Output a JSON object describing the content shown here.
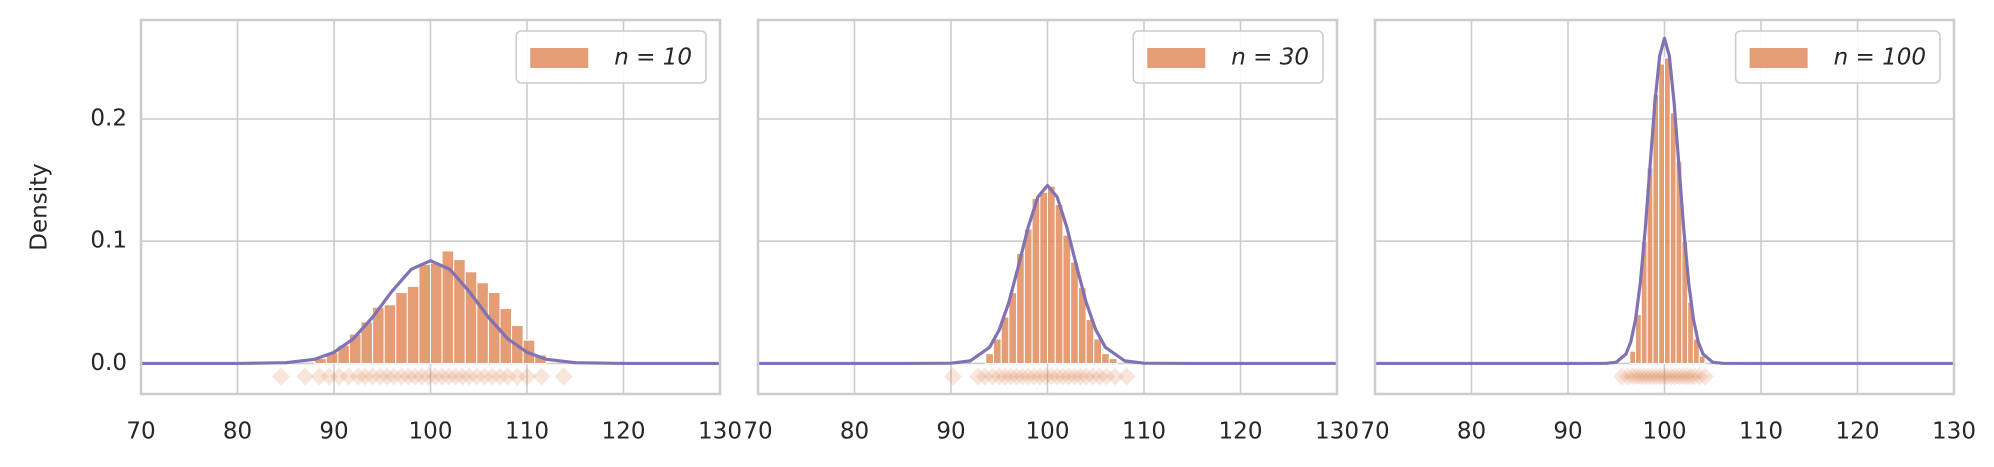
{
  "chart_data": [
    {
      "type": "histogram",
      "ylabel": "Density",
      "label": "n = 10",
      "color": "#dd8452",
      "legend": "upper right",
      "grid": true,
      "xlim": [
        70,
        130
      ],
      "xticks": [
        70,
        80,
        90,
        100,
        110,
        120,
        130
      ],
      "ylim": [
        -0.025,
        0.281
      ],
      "yticks": [
        {
          "value": 0,
          "label": "0.0"
        },
        0.1,
        0.2
      ],
      "ytick_labels": true,
      "bins": [
        88,
        89.2,
        90.4,
        91.6,
        92.8,
        94,
        95.2,
        96.4,
        97.6,
        98.8,
        100,
        101.2,
        102.4,
        103.6,
        104.8,
        106,
        107.2,
        108.4,
        109.6,
        110.8,
        112
      ],
      "values": [
        0.004,
        0.009,
        0.015,
        0.024,
        0.034,
        0.046,
        0.048,
        0.058,
        0.063,
        0.081,
        0.082,
        0.092,
        0.085,
        0.075,
        0.066,
        0.058,
        0.045,
        0.031,
        0.019,
        0.007
      ],
      "curve": {
        "color": "#8172b3",
        "x": [
          70,
          80,
          85,
          88,
          90,
          92,
          94,
          96,
          98,
          100,
          102,
          104,
          106,
          108,
          110,
          112,
          115,
          120,
          130
        ],
        "values": [
          0,
          0,
          0.0006,
          0.0034,
          0.0091,
          0.0202,
          0.0378,
          0.059,
          0.077,
          0.0841,
          0.077,
          0.059,
          0.0378,
          0.0202,
          0.0091,
          0.0034,
          0.0006,
          0,
          0
        ]
      },
      "rug": {
        "color": "#dd8452",
        "x": [
          84.5,
          87,
          88.5,
          89.5,
          90.5,
          91.5,
          92.5,
          93.2,
          94,
          94.8,
          95.5,
          96.2,
          97,
          97.7,
          98.4,
          99.1,
          99.8,
          100.5,
          101.2,
          101.9,
          102.6,
          103.3,
          104,
          104.8,
          105.6,
          106.4,
          107.2,
          108,
          109,
          110,
          111.5,
          113.8
        ]
      }
    },
    {
      "type": "histogram",
      "label": "n = 30",
      "color": "#dd8452",
      "legend": "upper right",
      "grid": true,
      "xlim": [
        70,
        130
      ],
      "xticks": [
        70,
        80,
        90,
        100,
        110,
        120,
        130
      ],
      "ylim": [
        -0.025,
        0.281
      ],
      "yticks": [
        0,
        0.1,
        0.2
      ],
      "ytick_labels": false,
      "bins": [
        93.6,
        94.4,
        95.2,
        96,
        96.8,
        97.6,
        98.4,
        99.2,
        100,
        100.8,
        101.6,
        102.4,
        103.2,
        104,
        104.8,
        105.6,
        106.4,
        107.2
      ],
      "values": [
        0.008,
        0.02,
        0.038,
        0.058,
        0.09,
        0.11,
        0.135,
        0.14,
        0.145,
        0.13,
        0.105,
        0.083,
        0.062,
        0.036,
        0.02,
        0.008,
        0.004
      ],
      "curve": {
        "color": "#8172b3",
        "x": [
          70,
          85,
          90,
          92,
          94,
          95,
          96,
          97,
          98,
          99,
          100,
          101,
          102,
          103,
          104,
          105,
          106,
          108,
          110,
          115,
          130
        ],
        "values": [
          0,
          0,
          0.0002,
          0.0021,
          0.0132,
          0.0275,
          0.0501,
          0.08,
          0.1115,
          0.1362,
          0.1456,
          0.1362,
          0.1115,
          0.08,
          0.0501,
          0.0275,
          0.0132,
          0.0021,
          0.0002,
          0,
          0
        ]
      },
      "rug": {
        "color": "#dd8452",
        "x": [
          90.2,
          92.8,
          93.5,
          94.3,
          95,
          95.6,
          96.2,
          96.8,
          97.4,
          98,
          98.6,
          99.2,
          99.8,
          100.4,
          101,
          101.6,
          102.2,
          102.8,
          103.4,
          104,
          104.7,
          105.4,
          106.1,
          107,
          108.2
        ]
      }
    },
    {
      "type": "histogram",
      "label": "n = 100",
      "color": "#dd8452",
      "legend": "upper right",
      "grid": true,
      "xlim": [
        70,
        130
      ],
      "xticks": [
        70,
        80,
        90,
        100,
        110,
        120,
        130
      ],
      "ylim": [
        -0.025,
        0.281
      ],
      "yticks": [
        0,
        0.1,
        0.2
      ],
      "ytick_labels": false,
      "bins": [
        96.4,
        97,
        97.6,
        98.2,
        98.8,
        99.4,
        100,
        100.6,
        101.2,
        101.8,
        102.4,
        103,
        103.6,
        104.2
      ],
      "values": [
        0.01,
        0.04,
        0.1,
        0.16,
        0.22,
        0.245,
        0.25,
        0.205,
        0.165,
        0.1,
        0.05,
        0.02,
        0.006
      ],
      "curve": {
        "color": "#8172b3",
        "x": [
          70,
          90,
          94,
          95,
          96,
          96.5,
          97,
          97.5,
          98,
          98.5,
          99,
          99.5,
          100,
          100.5,
          101,
          101.5,
          102,
          102.5,
          103,
          103.5,
          104,
          105,
          106,
          110,
          130
        ],
        "values": [
          0,
          0,
          0.0001,
          0.001,
          0.0076,
          0.0175,
          0.036,
          0.0663,
          0.1094,
          0.1613,
          0.213,
          0.2516,
          0.266,
          0.2516,
          0.213,
          0.1613,
          0.1094,
          0.0663,
          0.036,
          0.0175,
          0.0076,
          0.001,
          0.0001,
          0,
          0
        ]
      },
      "rug": {
        "color": "#dd8452",
        "x": [
          95.6,
          96.2,
          96.7,
          97.1,
          97.5,
          97.9,
          98.3,
          98.7,
          99.1,
          99.5,
          99.9,
          100.3,
          100.7,
          101.1,
          101.5,
          101.9,
          102.3,
          102.7,
          103.1,
          103.6,
          104.2
        ]
      }
    }
  ]
}
